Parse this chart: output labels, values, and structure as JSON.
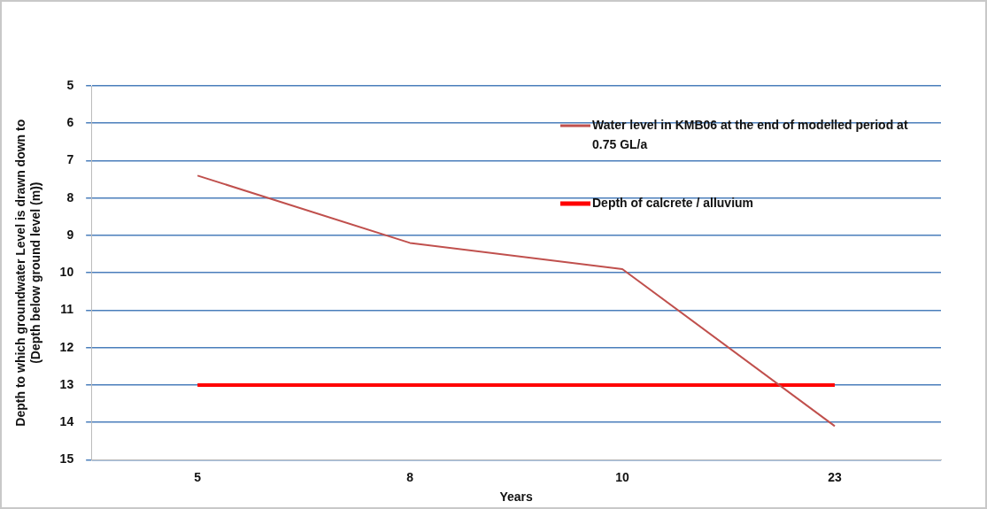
{
  "chart_data": {
    "type": "line",
    "xlabel": "Years",
    "ylabel": "Depth to which groundwater Level is drawn down to\n(Depth below ground level (m))",
    "categories": [
      "5",
      "8",
      "10",
      "23"
    ],
    "series": [
      {
        "name": "Water level in KMB06 at the end of modelled period at 0.75 GL/a",
        "color": "#c0504d",
        "values": [
          7.4,
          9.2,
          9.9,
          14.1
        ]
      },
      {
        "name": "Depth of calcrete / alluvium",
        "color": "#ff0000",
        "values": [
          13,
          13,
          13,
          13
        ]
      }
    ],
    "ylim": [
      15,
      5
    ],
    "yticks": [
      5,
      6,
      7,
      8,
      9,
      10,
      11,
      12,
      13,
      14,
      15
    ],
    "grid": "y",
    "legend": "top right",
    "marker": "none",
    "line_style": "solid"
  }
}
